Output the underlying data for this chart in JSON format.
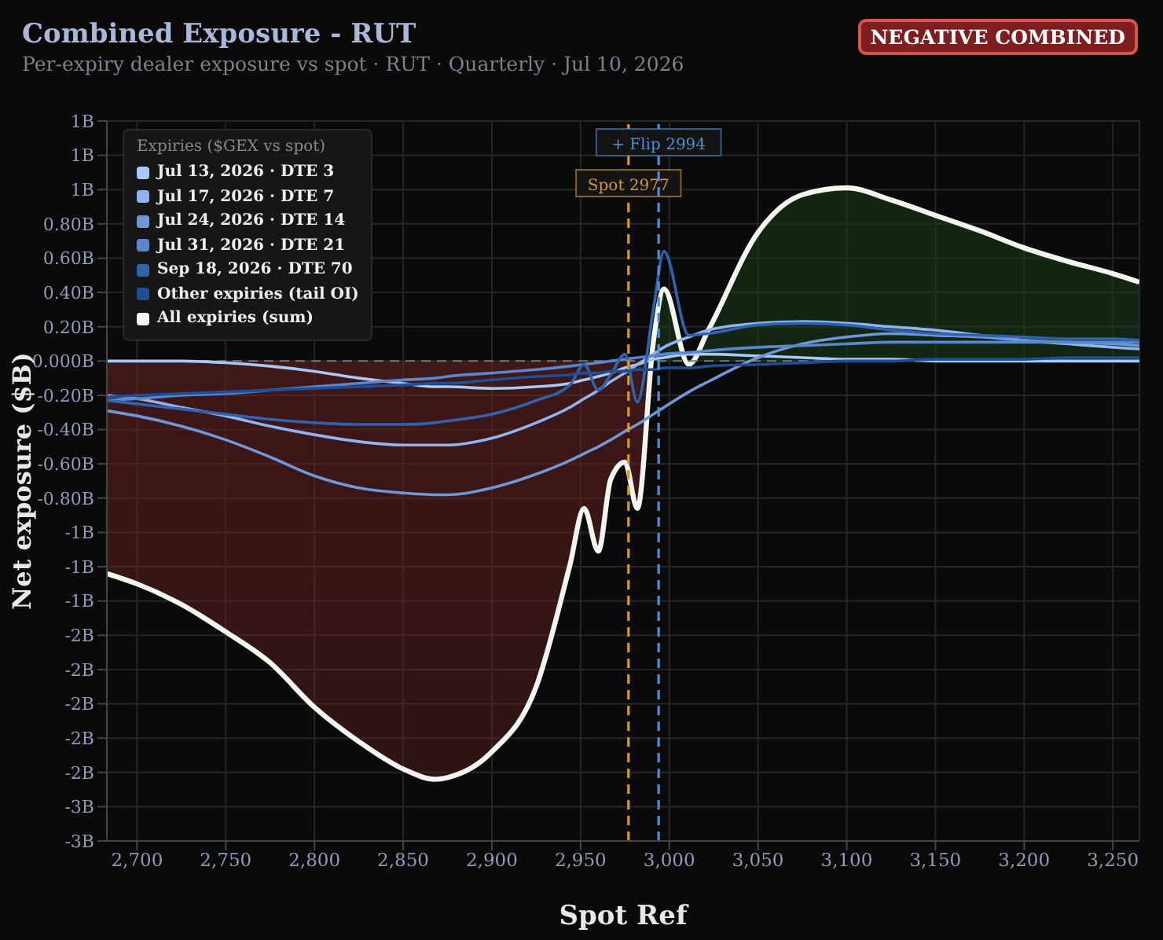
{
  "chart_data": {
    "type": "line",
    "title": "Combined Exposure - RUT",
    "subtitle": "Per-expiry dealer exposure vs spot · RUT · Quarterly · Jul 10, 2026",
    "xlabel": "Spot Ref",
    "ylabel": "Net exposure ($B)",
    "legend_title": "Expiries ($GEX vs spot)",
    "annotations": [
      "NEGATIVE COMBINED"
    ],
    "x": [
      2683,
      2700,
      2725,
      2750,
      2775,
      2800,
      2825,
      2850,
      2868,
      2875,
      2900,
      2925,
      2944,
      2952,
      2960,
      2967,
      2975,
      2982,
      2991,
      2997,
      3011,
      3022,
      3050,
      3075,
      3100,
      3125,
      3150,
      3175,
      3200,
      3225,
      3250,
      3265
    ],
    "series": [
      {
        "name": "Jul 13, 2026 · DTE 3",
        "color": "#a8c8f8",
        "values": [
          0,
          0,
          0,
          -0.01,
          -0.03,
          -0.06,
          -0.1,
          -0.13,
          -0.15,
          -0.15,
          -0.16,
          -0.15,
          -0.13,
          -0.11,
          -0.09,
          -0.07,
          -0.04,
          -0.02,
          0.01,
          0.02,
          0.04,
          0.04,
          0.03,
          0.02,
          0.01,
          0.01,
          0,
          0,
          0,
          0,
          0,
          0
        ]
      },
      {
        "name": "Jul 17, 2026 · DTE 7",
        "color": "#8fb4ef",
        "values": [
          -0.2,
          -0.22,
          -0.27,
          -0.32,
          -0.38,
          -0.43,
          -0.47,
          -0.49,
          -0.49,
          -0.49,
          -0.45,
          -0.36,
          -0.27,
          -0.22,
          -0.17,
          -0.12,
          -0.07,
          -0.02,
          0.04,
          0.08,
          0.14,
          0.18,
          0.22,
          0.23,
          0.22,
          0.2,
          0.18,
          0.15,
          0.12,
          0.1,
          0.08,
          0.07
        ]
      },
      {
        "name": "Jul 24, 2026 · DTE 14",
        "color": "#6f98d8",
        "values": [
          -0.29,
          -0.32,
          -0.38,
          -0.46,
          -0.56,
          -0.67,
          -0.74,
          -0.77,
          -0.78,
          -0.78,
          -0.74,
          -0.66,
          -0.58,
          -0.54,
          -0.5,
          -0.46,
          -0.41,
          -0.37,
          -0.31,
          -0.27,
          -0.18,
          -0.12,
          0.02,
          0.1,
          0.14,
          0.16,
          0.15,
          0.14,
          0.12,
          0.11,
          0.1,
          0.09
        ]
      },
      {
        "name": "Jul 31, 2026 · DTE 21",
        "color": "#5a86cc",
        "values": [
          -0.23,
          -0.22,
          -0.2,
          -0.19,
          -0.17,
          -0.15,
          -0.13,
          -0.11,
          -0.1,
          -0.09,
          -0.07,
          -0.05,
          -0.03,
          -0.02,
          -0.01,
          0,
          0.01,
          0.02,
          0.03,
          0.04,
          0.05,
          0.06,
          0.08,
          0.09,
          0.1,
          0.11,
          0.11,
          0.11,
          0.11,
          0.11,
          0.11,
          0.11
        ]
      },
      {
        "name": "Sep 18, 2026 · DTE 70",
        "color": "#2f63ad",
        "values": [
          -0.23,
          -0.25,
          -0.28,
          -0.31,
          -0.34,
          -0.36,
          -0.37,
          -0.37,
          -0.36,
          -0.35,
          -0.31,
          -0.23,
          -0.14,
          -0.02,
          -0.17,
          -0.08,
          0.04,
          -0.24,
          0.3,
          0.64,
          0.15,
          0.16,
          0.21,
          0.22,
          0.21,
          0.18,
          0.16,
          0.15,
          0.14,
          0.13,
          0.13,
          0.12
        ]
      },
      {
        "name": "Other expiries (tail OI)",
        "color": "#1d4f96",
        "values": [
          -0.21,
          -0.2,
          -0.19,
          -0.18,
          -0.17,
          -0.16,
          -0.15,
          -0.14,
          -0.13,
          -0.13,
          -0.11,
          -0.09,
          -0.08,
          -0.07,
          -0.07,
          -0.06,
          -0.06,
          -0.05,
          -0.05,
          -0.04,
          -0.04,
          -0.03,
          -0.02,
          -0.01,
          0,
          0,
          0.01,
          0.01,
          0.01,
          0.02,
          0.02,
          0.02
        ]
      },
      {
        "name": "All expiries (sum)",
        "type": "area",
        "color": "#f5f5f0",
        "values": [
          -1.24,
          -1.3,
          -1.42,
          -1.58,
          -1.76,
          -2.02,
          -2.22,
          -2.38,
          -2.44,
          -2.43,
          -2.28,
          -1.9,
          -1.19,
          -0.86,
          -1.11,
          -0.69,
          -0.59,
          -0.86,
          0.11,
          0.42,
          -0.02,
          0.18,
          0.75,
          0.97,
          1.01,
          0.94,
          0.85,
          0.76,
          0.66,
          0.58,
          0.51,
          0.46
        ]
      }
    ],
    "xlim": [
      2683,
      3265
    ],
    "xticks": [
      {
        "value": 2700,
        "label": "2,700"
      },
      {
        "value": 2750,
        "label": "2,750"
      },
      {
        "value": 2800,
        "label": "2,800"
      },
      {
        "value": 2850,
        "label": "2,850"
      },
      {
        "value": 2900,
        "label": "2,900"
      },
      {
        "value": 2950,
        "label": "2,950"
      },
      {
        "value": 3000,
        "label": "3,000"
      },
      {
        "value": 3050,
        "label": "3,050"
      },
      {
        "value": 3100,
        "label": "3,100"
      },
      {
        "value": 3150,
        "label": "3,150"
      },
      {
        "value": 3200,
        "label": "3,200"
      },
      {
        "value": 3250,
        "label": "3,250"
      }
    ],
    "ylim": [
      -2.8,
      1.4
    ],
    "yticks": [
      {
        "value": 1.4,
        "label": "1B"
      },
      {
        "value": 1.2,
        "label": "1B"
      },
      {
        "value": 1,
        "label": "1B"
      },
      {
        "value": 0.8,
        "label": "0.80B"
      },
      {
        "value": 0.6,
        "label": "0.60B"
      },
      {
        "value": 0.4,
        "label": "0.40B"
      },
      {
        "value": 0.2,
        "label": "0.20B"
      },
      {
        "value": 0,
        "label": "0.000B"
      },
      {
        "value": -0.2,
        "label": "-0.20B"
      },
      {
        "value": -0.4,
        "label": "-0.40B"
      },
      {
        "value": -0.6,
        "label": "-0.60B"
      },
      {
        "value": -0.8,
        "label": "-0.80B"
      },
      {
        "value": -1,
        "label": "-1B"
      },
      {
        "value": -1.2,
        "label": "-1B"
      },
      {
        "value": -1.4,
        "label": "-1B"
      },
      {
        "value": -1.6,
        "label": "-2B"
      },
      {
        "value": -1.8,
        "label": "-2B"
      },
      {
        "value": -2,
        "label": "-2B"
      },
      {
        "value": -2.2,
        "label": "-2B"
      },
      {
        "value": -2.4,
        "label": "-2B"
      },
      {
        "value": -2.6,
        "label": "-3B"
      },
      {
        "value": -2.8,
        "label": "-3B"
      }
    ],
    "ref_lines": [
      {
        "axis": "x",
        "value": 2977,
        "label": "Spot 2977",
        "color": "#d49a2a",
        "line_style": "dashed"
      },
      {
        "axis": "x",
        "value": 2994,
        "label": "+ Flip 2994",
        "color": "#4a90d9",
        "line_style": "dashed"
      },
      {
        "axis": "y",
        "value": 0,
        "color": "#777777",
        "line_style": "dashed"
      }
    ],
    "grid": true,
    "legend": "top left"
  }
}
